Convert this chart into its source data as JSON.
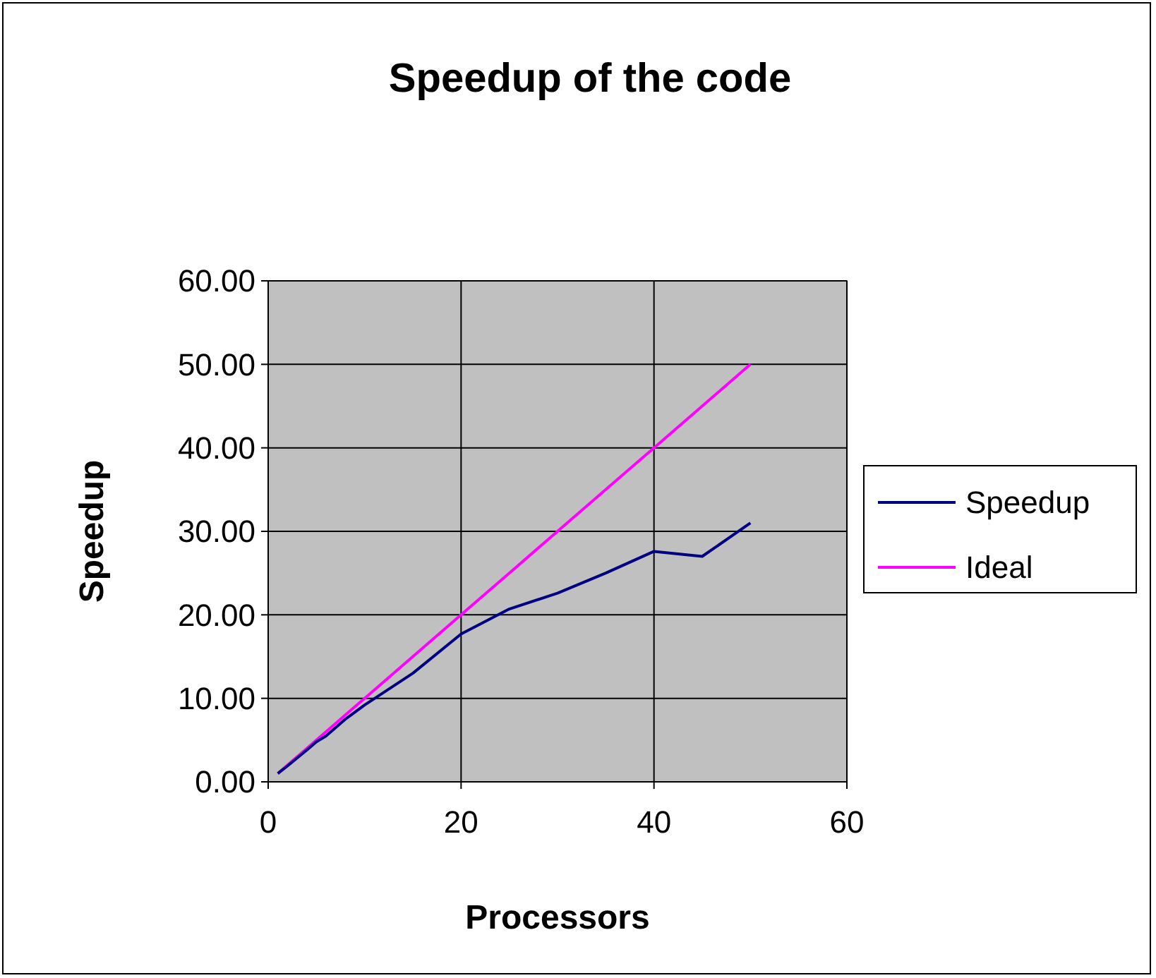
{
  "chart_data": {
    "type": "line",
    "title": "Speedup of the code",
    "xlabel": "Processors",
    "ylabel": "Speedup",
    "xlim": [
      0,
      60
    ],
    "xticks": [
      0,
      20,
      40,
      60
    ],
    "ylim": [
      0,
      60
    ],
    "yticks": [
      {
        "value": 0,
        "label": "0.00"
      },
      {
        "value": 10,
        "label": "10.00"
      },
      {
        "value": 20,
        "label": "20.00"
      },
      {
        "value": 30,
        "label": "30.00"
      },
      {
        "value": 40,
        "label": "40.00"
      },
      {
        "value": 50,
        "label": "50.00"
      },
      {
        "value": 60,
        "label": "60.00"
      }
    ],
    "grid": true,
    "legend": "right",
    "marker": "none",
    "line_style": "solid",
    "series": [
      {
        "name": "Speedup",
        "color": "#000080",
        "x": [
          1,
          2,
          4,
          5,
          6,
          8,
          10,
          15,
          20,
          25,
          30,
          35,
          40,
          45,
          50
        ],
        "values": [
          1,
          1.9,
          3.8,
          4.8,
          5.5,
          7.5,
          9.2,
          13,
          17.7,
          20.7,
          22.6,
          25,
          27.6,
          27,
          31
        ]
      },
      {
        "name": "Ideal",
        "color": "#ff00ff",
        "x": [
          1,
          2,
          4,
          5,
          6,
          8,
          10,
          15,
          20,
          25,
          30,
          35,
          40,
          45,
          50
        ],
        "values": [
          1,
          2,
          4,
          5,
          6,
          8,
          10,
          15,
          20,
          25,
          30,
          35,
          40,
          45,
          50
        ]
      }
    ]
  }
}
